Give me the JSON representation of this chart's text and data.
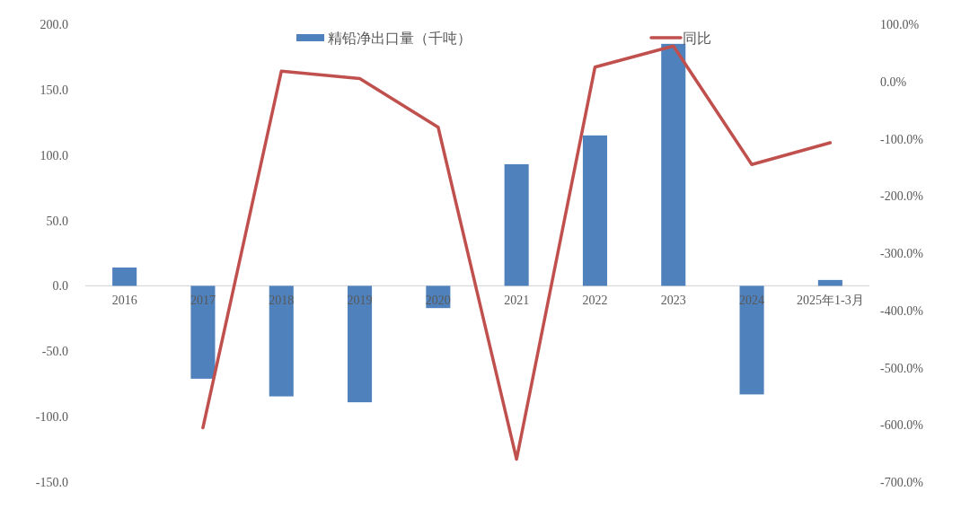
{
  "chart_data": {
    "type": "bar",
    "categories": [
      "2016",
      "2017",
      "2018",
      "2019",
      "2020",
      "2021",
      "2022",
      "2023",
      "2024",
      "2025年1-3月"
    ],
    "series": [
      {
        "name": "精铅净出口量（千吨）",
        "color": "#4f81bd",
        "values": [
          14,
          -71,
          -84.5,
          -89,
          -17,
          93,
          115,
          185,
          -83,
          4.5
        ]
      },
      {
        "name": "同比",
        "type": "line",
        "axis": "y2",
        "color": "#c0504d",
        "values": [
          null,
          -605,
          18,
          5,
          -80,
          -660,
          25,
          62,
          -145,
          -107
        ]
      }
    ],
    "ylim": [
      -150,
      200
    ],
    "yticks": [
      {
        "value": 200,
        "label": "200.0"
      },
      {
        "value": 150,
        "label": "150.0"
      },
      {
        "value": 100,
        "label": "100.0"
      },
      {
        "value": 50,
        "label": "50.0"
      },
      {
        "value": 0,
        "label": "0.0"
      },
      {
        "value": -50,
        "label": "-50.0"
      },
      {
        "value": -100,
        "label": "-100.0"
      },
      {
        "value": -150,
        "label": "-150.0"
      }
    ],
    "y2lim": [
      -700,
      100
    ],
    "y2ticks": [
      {
        "value": 100,
        "label": "100.0%"
      },
      {
        "value": 0,
        "label": "0.0%"
      },
      {
        "value": -100,
        "label": "-100.0%"
      },
      {
        "value": -200,
        "label": "-200.0%"
      },
      {
        "value": -300,
        "label": "-300.0%"
      },
      {
        "value": -400,
        "label": "-400.0%"
      },
      {
        "value": -500,
        "label": "-500.0%"
      },
      {
        "value": -600,
        "label": "-600.0%"
      },
      {
        "value": -700,
        "label": "-700.0%"
      }
    ],
    "legend": "top"
  }
}
